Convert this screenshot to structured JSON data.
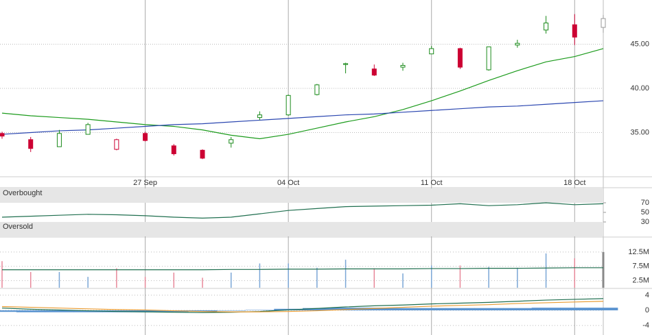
{
  "chart_data": [
    {
      "type": "candlestick",
      "categories": [
        null,
        null,
        null,
        null,
        null,
        "27 Sep",
        null,
        null,
        null,
        null,
        "04 Oct",
        null,
        null,
        null,
        null,
        "11 Oct",
        null,
        null,
        null,
        null,
        "18 Oct",
        null
      ],
      "open": [
        34.9,
        34.2,
        33.4,
        34.8,
        33.1,
        34.9,
        33.5,
        33.0,
        33.8,
        36.7,
        37.0,
        39.3,
        42.7,
        42.2,
        42.4,
        43.9,
        44.5,
        42.1,
        44.9,
        46.6,
        47.2,
        46.9
      ],
      "high": [
        35.1,
        34.5,
        35.3,
        36.1,
        34.3,
        35.1,
        33.7,
        33.1,
        34.5,
        37.4,
        39.3,
        40.5,
        42.9,
        42.7,
        42.9,
        44.8,
        44.6,
        44.7,
        45.5,
        48.2,
        48.4,
        48.3
      ],
      "low": [
        34.3,
        32.8,
        33.4,
        34.8,
        33.0,
        34.0,
        32.4,
        32.0,
        33.3,
        36.4,
        36.9,
        39.2,
        41.7,
        41.4,
        42.0,
        43.9,
        42.2,
        42.0,
        44.6,
        46.2,
        44.9,
        46.3
      ],
      "close": [
        34.6,
        33.2,
        34.9,
        35.9,
        34.2,
        34.1,
        32.6,
        32.1,
        34.2,
        37.0,
        39.2,
        40.4,
        42.8,
        41.5,
        42.6,
        44.5,
        42.4,
        44.7,
        45.1,
        47.4,
        45.8,
        47.9
      ],
      "colors": [
        "#cc0033",
        "#cc0033",
        "#1a8a1a",
        "#1a8a1a",
        "#cc0033",
        "#cc0033",
        "#cc0033",
        "#cc0033",
        "#1a8a1a",
        "#1a8a1a",
        "#1a8a1a",
        "#1a8a1a",
        "#1a8a1a",
        "#cc0033",
        "#1a8a1a",
        "#1a8a1a",
        "#cc0033",
        "#1a8a1a",
        "#1a8a1a",
        "#1a8a1a",
        "#cc0033",
        "#999999"
      ],
      "series": [
        {
          "color": "#1a9a1a",
          "values": [
            37.2,
            36.9,
            36.7,
            36.5,
            36.2,
            35.9,
            35.7,
            35.3,
            34.7,
            34.3,
            34.8,
            35.5,
            36.2,
            36.8,
            37.6,
            38.6,
            39.7,
            40.9,
            42.0,
            43.0,
            43.6,
            44.5
          ]
        },
        {
          "color": "#2a46b0",
          "values": [
            34.8,
            35.0,
            35.2,
            35.3,
            35.5,
            35.7,
            35.9,
            36.0,
            36.2,
            36.4,
            36.6,
            36.8,
            37.0,
            37.1,
            37.3,
            37.5,
            37.7,
            37.9,
            38.0,
            38.2,
            38.4,
            38.6
          ]
        }
      ],
      "ylim": [
        30,
        50
      ],
      "yticks": [
        {
          "value": 35,
          "label": "35.00"
        },
        {
          "value": 40,
          "label": "40.00"
        },
        {
          "value": 45,
          "label": "45.00"
        }
      ],
      "grid": true
    },
    {
      "type": "line",
      "upper_label": "Overbought",
      "lower_label": "Oversold",
      "upper_band": [
        70,
        100
      ],
      "lower_band": [
        0,
        30
      ],
      "series": [
        {
          "color": "#1e6e4e",
          "values": [
            40,
            42,
            44,
            46,
            45,
            43,
            40,
            38,
            40,
            47,
            54,
            58,
            62,
            63,
            64,
            65,
            68,
            64,
            66,
            70,
            66,
            68
          ]
        }
      ],
      "ylim": [
        0,
        100
      ],
      "yticks": [
        30,
        50,
        70
      ]
    },
    {
      "type": "bar",
      "values": [
        9.3,
        5.5,
        5.5,
        3.8,
        6.8,
        3.8,
        5.3,
        3.5,
        5.3,
        8.5,
        8.5,
        7.0,
        9.8,
        6.8,
        5.0,
        7.8,
        7.8,
        7.3,
        7.0,
        12.0,
        10.3,
        12.5
      ],
      "colors": [
        "#e8899a",
        "#e8899a",
        "#7aa6d6",
        "#7aa6d6",
        "#e8899a",
        "#e8899a",
        "#e8899a",
        "#e8899a",
        "#7aa6d6",
        "#7aa6d6",
        "#7aa6d6",
        "#7aa6d6",
        "#7aa6d6",
        "#e8899a",
        "#7aa6d6",
        "#7aa6d6",
        "#e8899a",
        "#7aa6d6",
        "#7aa6d6",
        "#7aa6d6",
        "#e8899a",
        "#888888"
      ],
      "series": [
        {
          "color": "#1e6e4e",
          "values": [
            6.3,
            6.3,
            6.3,
            6.3,
            6.3,
            6.3,
            6.3,
            6.3,
            6.4,
            6.4,
            6.5,
            6.5,
            6.6,
            6.6,
            6.6,
            6.7,
            6.7,
            6.8,
            6.8,
            6.9,
            7.0,
            7.0
          ]
        }
      ],
      "ylim": [
        0,
        17.5
      ],
      "yticks": [
        {
          "value": 2.5,
          "label": "2.5M"
        },
        {
          "value": 7.5,
          "label": "7.5M"
        },
        {
          "value": 12.5,
          "label": "12.5M"
        }
      ]
    },
    {
      "type": "histogram-line",
      "values": [
        -0.4,
        -0.5,
        -0.5,
        -0.5,
        -0.5,
        -0.5,
        -0.4,
        -0.3,
        -0.1,
        0.1,
        0.4,
        0.6,
        0.7,
        0.7,
        0.6,
        0.6,
        0.6,
        0.6,
        0.6,
        0.7,
        0.7,
        0.7
      ],
      "color": "#5b94d0",
      "series": [
        {
          "color": "#1e6e4e",
          "values": [
            0.6,
            0.3,
            0.1,
            -0.1,
            -0.3,
            -0.4,
            -0.5,
            -0.6,
            -0.5,
            -0.3,
            0.1,
            0.5,
            0.9,
            1.2,
            1.4,
            1.7,
            1.9,
            2.1,
            2.4,
            2.7,
            2.9,
            3.1
          ]
        },
        {
          "color": "#e89a30",
          "values": [
            1.0,
            0.8,
            0.6,
            0.4,
            0.2,
            0.1,
            -0.1,
            -0.3,
            -0.4,
            -0.4,
            -0.3,
            -0.1,
            0.2,
            0.5,
            0.8,
            1.1,
            1.3,
            1.5,
            1.8,
            2.0,
            2.2,
            2.4
          ]
        }
      ],
      "ylim": [
        -6.5,
        5.6
      ],
      "yticks": [
        -4,
        0,
        4
      ]
    }
  ]
}
